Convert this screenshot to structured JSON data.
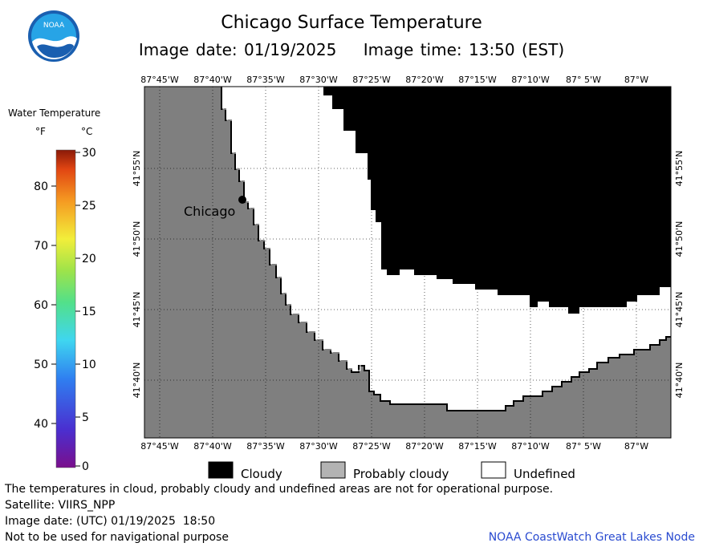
{
  "header": {
    "title": "Chicago Surface Temperature",
    "subtitle": "Image date: 01/19/2025    Image time: 13:50 (EST)"
  },
  "logo": {
    "text": "NOAA"
  },
  "legend": {
    "title": "Water Temperature",
    "unit_f": "°F",
    "unit_c": "°C",
    "f_ticks": [
      "40",
      "50",
      "60",
      "70",
      "80"
    ],
    "c_ticks": [
      "0",
      "5",
      "10",
      "15",
      "20",
      "25",
      "30"
    ]
  },
  "map": {
    "top_lon_labels": [
      "87°45'W",
      "87°40'W",
      "87°35'W",
      "87°30'W",
      "87°25'W",
      "87°20'W",
      "87°15'W",
      "87°10'W",
      "87° 5'W",
      "87°W"
    ],
    "bottom_lon_labels": [
      "87°45'W",
      "87°40'W",
      "87°35'W",
      "87°30'W",
      "87°25'W",
      "87°20'W",
      "87°15'W",
      "87°10'W",
      "87° 5'W",
      "87°W"
    ],
    "left_lat_labels": [
      "41°55'N",
      "41°50'N",
      "41°45'N",
      "41°40'N"
    ],
    "right_lat_labels": [
      "41°55'N",
      "41°50'N",
      "41°45'N",
      "41°40'N"
    ],
    "city_label": "Chicago",
    "colors": {
      "land": "#7f7f7f",
      "cloud": "#000000",
      "undefined": "#ffffff",
      "grid": "#000000"
    }
  },
  "key": {
    "cloudy": "Cloudy",
    "probably_cloudy": "Probably cloudy",
    "undefined": "Undefined"
  },
  "footer": {
    "line1": "The temperatures in cloud, probably cloudy and undefined areas are not for operational purpose.",
    "line2": "Satellite: VIIRS_NPP",
    "line3": "Image date: (UTC) 01/19/2025  18:50",
    "line4": "Not to be used for navigational purpose",
    "credit": "NOAA CoastWatch Great Lakes Node"
  }
}
